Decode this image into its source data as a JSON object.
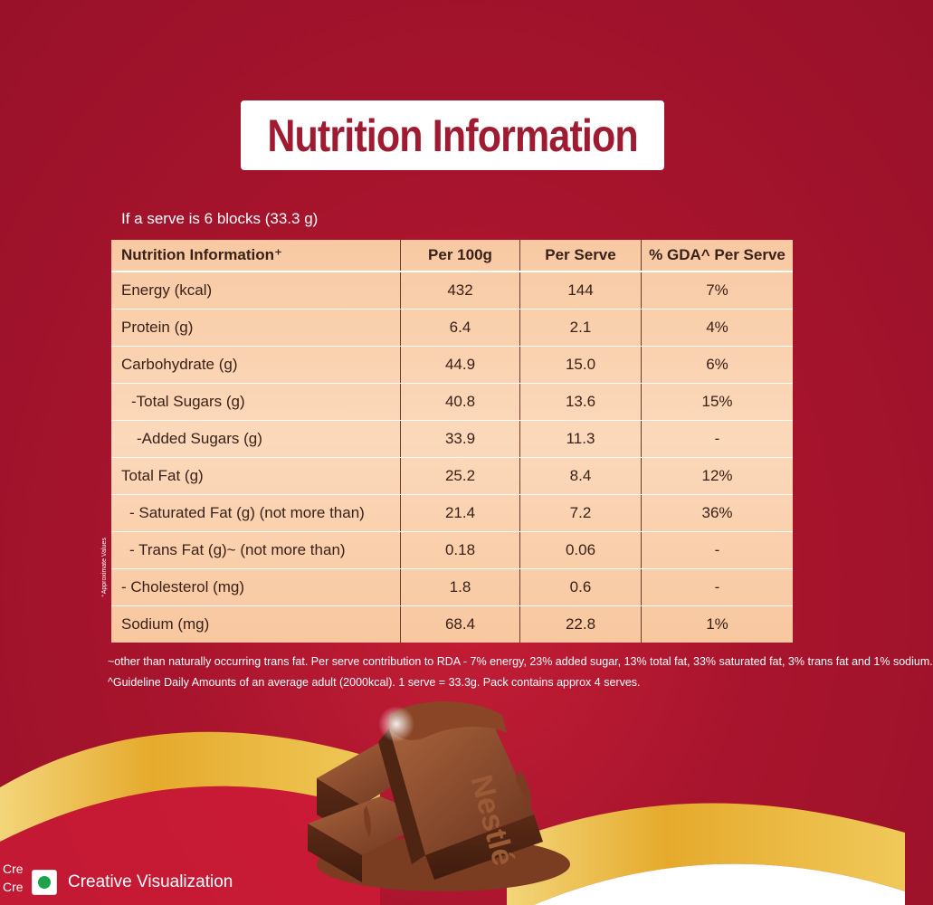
{
  "title": "Nutrition Information",
  "serve_note": "If a serve is 6 blocks (33.3 g)",
  "table": {
    "headers": [
      "Nutrition Information⁺",
      "Per 100g",
      "Per Serve",
      "% GDA^ Per Serve"
    ],
    "rows": [
      {
        "label": "Energy (kcal)",
        "per100": "432",
        "perServe": "144",
        "gda": "7%"
      },
      {
        "label": "Protein (g)",
        "per100": "6.4",
        "perServe": "2.1",
        "gda": "4%"
      },
      {
        "label": "Carbohydrate (g)",
        "per100": "44.9",
        "perServe": "15.0",
        "gda": "6%"
      },
      {
        "label": "-Total Sugars (g)",
        "per100": "40.8",
        "perServe": "13.6",
        "gda": "15%"
      },
      {
        "label": "-Added Sugars (g)",
        "per100": "33.9",
        "perServe": "11.3",
        "gda": "-"
      },
      {
        "label": "Total Fat (g)",
        "per100": "25.2",
        "perServe": "8.4",
        "gda": "12%"
      },
      {
        "label": "- Saturated Fat (g) (not more than)",
        "per100": "21.4",
        "perServe": "7.2",
        "gda": "36%"
      },
      {
        "label": "- Trans Fat (g)~ (not more than)",
        "per100": "0.18",
        "perServe": "0.06",
        "gda": "-"
      },
      {
        "label": "- Cholesterol (mg)",
        "per100": "1.8",
        "perServe": "0.6",
        "gda": "-"
      },
      {
        "label": "Sodium (mg)",
        "per100": "68.4",
        "perServe": "22.8",
        "gda": "1%"
      }
    ]
  },
  "side_note": "⁺Approximate Values",
  "footnotes": [
    "~other than naturally occurring trans fat. Per serve contribution to RDA - 7% energy, 23% added sugar, 13% total fat, 33% saturated fat, 3% trans fat and 1% sodium.",
    "^Guideline Daily Amounts of an average adult (2000kcal). 1 serve = 33.3g. Pack contains approx 4 serves."
  ],
  "brand_embossed": "Nestlé",
  "creative_label": "Creative Visualization",
  "cut_text": [
    "Cre",
    "Cre"
  ],
  "colors": {
    "background": "#a8142d",
    "title": "#9e1b32",
    "table_fill": "#f9cfac",
    "gold_swoosh": "#e8b339",
    "chocolate": "#6b3520",
    "veg_dot": "#1fa34a"
  },
  "icons": [
    "veg-mark-icon"
  ]
}
